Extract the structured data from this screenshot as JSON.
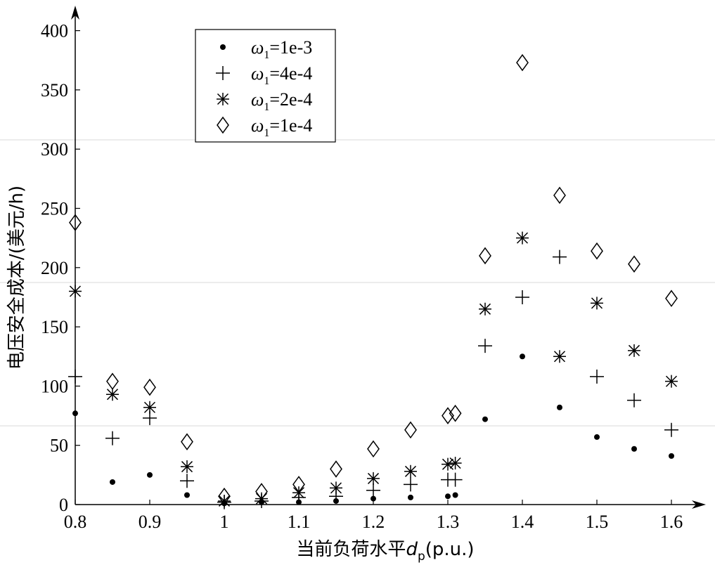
{
  "chart_data": {
    "type": "scatter",
    "xlabel": {
      "main": "当前负荷水平",
      "var": "d",
      "sub": "p",
      "tail": "(p.u.)"
    },
    "ylabel": "电压安全成本/(美元/h)",
    "xlim": [
      0.8,
      1.65
    ],
    "ylim": [
      0,
      400
    ],
    "xticks": [
      0.8,
      0.9,
      1,
      1.1,
      1.2,
      1.3,
      1.4,
      1.5,
      1.6
    ],
    "xtick_labels": [
      "0.8",
      "0.9",
      "1",
      "1.1",
      "1.2",
      "1.3",
      "1.4",
      "1.5",
      "1.6"
    ],
    "yticks": [
      0,
      50,
      100,
      150,
      200,
      250,
      300,
      350,
      400
    ],
    "ytick_labels": [
      "0",
      "50",
      "100",
      "150",
      "200",
      "250",
      "300",
      "350",
      "400"
    ],
    "legend_position": "top-left",
    "series": [
      {
        "name": "=1e-3",
        "symbol": "omega",
        "sub": "1",
        "marker": "dot",
        "points": [
          [
            0.8,
            77
          ],
          [
            0.85,
            19
          ],
          [
            0.9,
            25
          ],
          [
            0.95,
            8
          ],
          [
            1.0,
            1
          ],
          [
            1.05,
            2
          ],
          [
            1.1,
            2
          ],
          [
            1.15,
            3
          ],
          [
            1.2,
            5
          ],
          [
            1.25,
            6
          ],
          [
            1.3,
            7
          ],
          [
            1.31,
            8
          ],
          [
            1.35,
            72
          ],
          [
            1.4,
            125
          ],
          [
            1.45,
            82
          ],
          [
            1.5,
            57
          ],
          [
            1.55,
            47
          ],
          [
            1.6,
            41
          ]
        ]
      },
      {
        "name": "=4e-4",
        "symbol": "omega",
        "sub": "1",
        "marker": "plus",
        "points": [
          [
            0.8,
            108
          ],
          [
            0.85,
            56
          ],
          [
            0.9,
            73
          ],
          [
            0.95,
            20
          ],
          [
            1.0,
            2
          ],
          [
            1.05,
            3
          ],
          [
            1.1,
            6
          ],
          [
            1.15,
            7
          ],
          [
            1.2,
            12
          ],
          [
            1.25,
            17
          ],
          [
            1.3,
            21
          ],
          [
            1.31,
            21
          ],
          [
            1.35,
            134
          ],
          [
            1.4,
            175
          ],
          [
            1.45,
            209
          ],
          [
            1.5,
            108
          ],
          [
            1.55,
            88
          ],
          [
            1.6,
            63
          ]
        ]
      },
      {
        "name": "=2e-4",
        "symbol": "omega",
        "sub": "1",
        "marker": "star",
        "points": [
          [
            0.8,
            180
          ],
          [
            0.85,
            93
          ],
          [
            0.9,
            82
          ],
          [
            0.95,
            32
          ],
          [
            1.0,
            3
          ],
          [
            1.05,
            5
          ],
          [
            1.1,
            10
          ],
          [
            1.15,
            14
          ],
          [
            1.2,
            22
          ],
          [
            1.25,
            28
          ],
          [
            1.3,
            34
          ],
          [
            1.31,
            35
          ],
          [
            1.35,
            165
          ],
          [
            1.4,
            225
          ],
          [
            1.45,
            125
          ],
          [
            1.5,
            170
          ],
          [
            1.55,
            130
          ],
          [
            1.6,
            104
          ]
        ]
      },
      {
        "name": "=1e-4",
        "symbol": "omega",
        "sub": "1",
        "marker": "diamond",
        "points": [
          [
            0.8,
            238
          ],
          [
            0.85,
            104
          ],
          [
            0.9,
            99
          ],
          [
            0.95,
            53
          ],
          [
            1.0,
            7
          ],
          [
            1.05,
            11
          ],
          [
            1.1,
            17
          ],
          [
            1.15,
            30
          ],
          [
            1.2,
            47
          ],
          [
            1.25,
            63
          ],
          [
            1.3,
            75
          ],
          [
            1.31,
            77
          ],
          [
            1.35,
            210
          ],
          [
            1.4,
            373
          ],
          [
            1.45,
            261
          ],
          [
            1.5,
            214
          ],
          [
            1.55,
            203
          ],
          [
            1.6,
            174
          ]
        ]
      }
    ]
  }
}
